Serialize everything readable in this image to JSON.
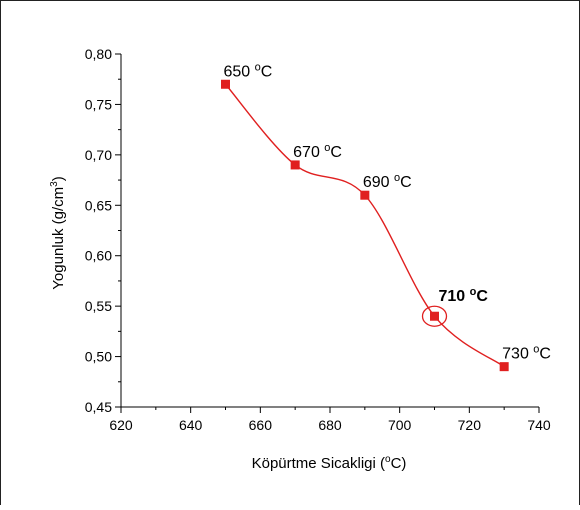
{
  "chart_data": {
    "type": "scatter",
    "xlabel": "Köpürtme Sicakligi (",
    "xlabel_unit": "o",
    "xlabel_tail": "C)",
    "ylabel": "Yogunluk (g/cm",
    "ylabel_sup": "3",
    "ylabel_tail": ")",
    "xlim": [
      620,
      740
    ],
    "ylim": [
      0.45,
      0.8
    ],
    "x_ticks": [
      620,
      640,
      660,
      680,
      700,
      720,
      740
    ],
    "x_tick_labels": [
      "620",
      "640",
      "660",
      "680",
      "700",
      "720",
      "740"
    ],
    "y_ticks": [
      0.45,
      0.5,
      0.55,
      0.6,
      0.65,
      0.7,
      0.75,
      0.8
    ],
    "y_tick_labels": [
      "0,45",
      "0,50",
      "0,55",
      "0,60",
      "0,65",
      "0,70",
      "0,75",
      "0,80"
    ],
    "grid": false,
    "series": [
      {
        "color": "#e02020",
        "marker": "square",
        "line": "smooth",
        "points": [
          {
            "x": 650,
            "y": 0.77,
            "label": "650",
            "label_bold": false
          },
          {
            "x": 670,
            "y": 0.69,
            "label": "670",
            "label_bold": false
          },
          {
            "x": 690,
            "y": 0.66,
            "label": "690",
            "label_bold": false
          },
          {
            "x": 710,
            "y": 0.54,
            "label": "710",
            "label_bold": true,
            "highlight": true
          },
          {
            "x": 730,
            "y": 0.49,
            "label": "730",
            "label_bold": false
          }
        ]
      }
    ],
    "label_unit_sup": "o",
    "label_unit": "C"
  }
}
